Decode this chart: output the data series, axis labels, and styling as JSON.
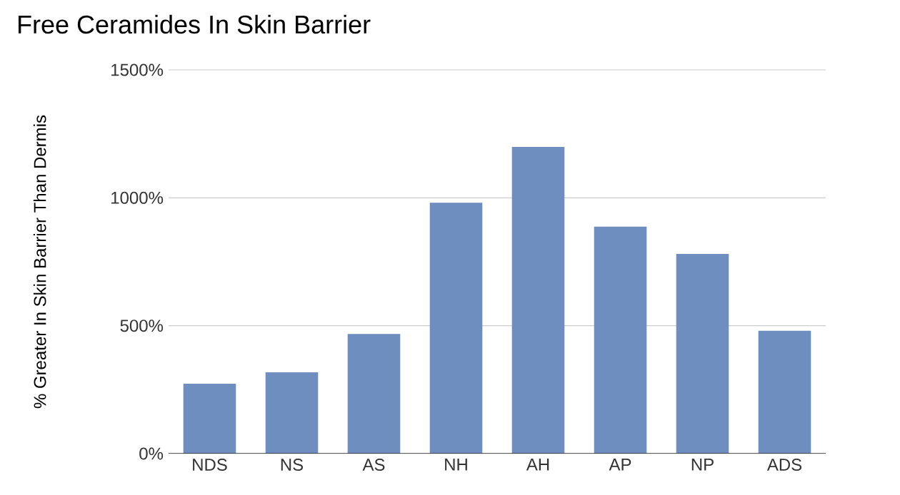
{
  "chart_data": {
    "type": "bar",
    "title": "Free Ceramides In Skin Barrier",
    "ylabel": "% Greater In Skin Barrier Than Dermis",
    "categories": [
      "NDS",
      "NS",
      "AS",
      "NH",
      "AH",
      "AP",
      "NP",
      "ADS"
    ],
    "values": [
      273,
      318,
      468,
      981,
      1199,
      887,
      781,
      480
    ],
    "color": "#6d8ebf",
    "ylim": [
      0,
      1500
    ],
    "yticks": [
      {
        "value": 0,
        "label": "0%"
      },
      {
        "value": 500,
        "label": "500%"
      },
      {
        "value": 1000,
        "label": "1000%"
      },
      {
        "value": 1500,
        "label": "1500%"
      }
    ],
    "grid": "y"
  }
}
